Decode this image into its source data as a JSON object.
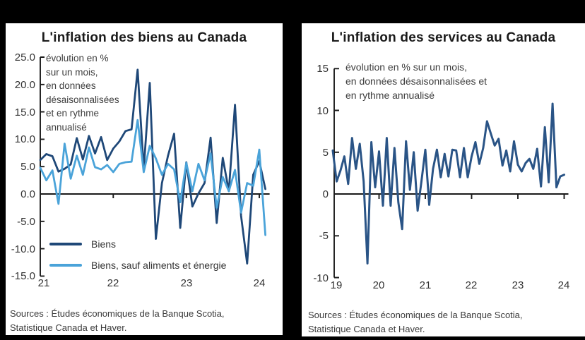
{
  "colors": {
    "dark_blue": "#1f4878",
    "light_blue": "#4aa3d9",
    "services_blue": "#2a5486",
    "axis": "#1a1a1a",
    "panel_background": "#ffffff",
    "page_background": "#000000",
    "text": "#333333"
  },
  "charts": [
    {
      "title": "L'inflation des biens au Canada",
      "annotation_lines": [
        "évolution en %",
        "sur un mois,",
        "en données",
        "désaisonnalisées",
        "et en rythme",
        "annualisé"
      ],
      "sources_lines": [
        "Sources : Études économiques de la Banque Scotia,",
        "Statistique Canada et Haver."
      ],
      "legend_labels": [
        "Biens",
        "Biens, sauf aliments et énergie"
      ],
      "chart_data": {
        "type": "line",
        "x_unit": "monthly",
        "x_start": "2021-01",
        "x_end": "2024-02",
        "ylim": [
          -15,
          25
        ],
        "grid": false,
        "legend_position": "inside-bottom-left",
        "y_ticks": [
          {
            "v": 25,
            "label": "25.0"
          },
          {
            "v": 20,
            "label": "20.0"
          },
          {
            "v": 15,
            "label": "15.0"
          },
          {
            "v": 10,
            "label": "10.0"
          },
          {
            "v": 5,
            "label": "5.0"
          },
          {
            "v": 0,
            "label": "0.0"
          },
          {
            "v": -5,
            "label": "-5.0"
          },
          {
            "v": -10,
            "label": "-10.0"
          },
          {
            "v": -15,
            "label": "-15.0"
          }
        ],
        "x_ticks": [
          {
            "t": 2021,
            "label": "21"
          },
          {
            "t": 2022,
            "label": "22"
          },
          {
            "t": 2023,
            "label": "23"
          },
          {
            "t": 2024,
            "label": "24"
          }
        ],
        "series": [
          {
            "name": "Biens",
            "color": "dark_blue",
            "values": [
              6.2,
              7.3,
              6.9,
              4.1,
              4.6,
              5.4,
              10.2,
              6.3,
              10.6,
              7.4,
              10.4,
              6.2,
              8.3,
              9.6,
              11.5,
              11.8,
              22.7,
              4.5,
              20.3,
              -8.2,
              2.0,
              7.0,
              11.0,
              -6.2,
              5.8,
              -2.3,
              0.1,
              2.0,
              10.3,
              -5.3,
              6.6,
              0.5,
              16.3,
              -4.0,
              -12.7,
              3.5,
              6.0,
              0.9
            ]
          },
          {
            "name": "Biens, sauf aliments et énergie",
            "color": "light_blue",
            "values": [
              4.8,
              2.5,
              4.3,
              -1.8,
              9.2,
              2.8,
              7.0,
              3.5,
              8.5,
              4.9,
              4.5,
              5.3,
              4.0,
              5.5,
              5.8,
              5.9,
              13.5,
              4.0,
              8.8,
              6.5,
              3.5,
              5.5,
              4.5,
              -1.5,
              5.7,
              0.5,
              5.5,
              2.5,
              7.4,
              -2.5,
              3.1,
              0.5,
              4.4,
              -3.4,
              2.0,
              1.5,
              8.1,
              -7.5
            ]
          }
        ]
      }
    },
    {
      "title": "L'inflation des services au Canada",
      "annotation_lines": [
        "évolution en % sur un mois,",
        "en données désaisonnalisées et",
        "en rythme annualisé"
      ],
      "sources_lines": [
        "Sources : Études économiques de la Banque Scotia,",
        "Statistique Canada et Haver."
      ],
      "legend_labels": [],
      "chart_data": {
        "type": "line",
        "x_unit": "monthly",
        "x_start": "2019-01",
        "x_end": "2024-01",
        "ylim": [
          -10,
          15
        ],
        "grid": false,
        "legend_position": "none",
        "y_ticks": [
          {
            "v": 15,
            "label": "15"
          },
          {
            "v": 10,
            "label": "10"
          },
          {
            "v": 5,
            "label": "5"
          },
          {
            "v": 0,
            "label": "0"
          },
          {
            "v": -5,
            "label": "-5"
          },
          {
            "v": -10,
            "label": "-10"
          }
        ],
        "x_ticks": [
          {
            "t": 2019,
            "label": "19"
          },
          {
            "t": 2020,
            "label": "20"
          },
          {
            "t": 2021,
            "label": "21"
          },
          {
            "t": 2022,
            "label": "22"
          },
          {
            "t": 2023,
            "label": "23"
          },
          {
            "t": 2024,
            "label": "24"
          }
        ],
        "series": [
          {
            "name": "Services",
            "color": "services_blue",
            "values": [
              5.2,
              1.5,
              2.8,
              4.5,
              1.2,
              6.7,
              3.0,
              6.0,
              1.5,
              -8.3,
              6.2,
              0.8,
              5.1,
              -1.4,
              6.7,
              -1.4,
              5.5,
              -1.0,
              -4.2,
              6.3,
              0.5,
              5.0,
              -2.0,
              1.5,
              5.3,
              -1.3,
              3.0,
              5.3,
              2.0,
              4.8,
              2.1,
              5.3,
              5.2,
              2.0,
              5.5,
              2.0,
              4.5,
              6.2,
              3.6,
              5.5,
              8.7,
              7.2,
              5.8,
              6.6,
              3.4,
              5.2,
              2.7,
              6.3,
              3.5,
              2.7,
              3.7,
              4.2,
              3.0,
              5.4,
              0.9,
              8.0,
              1.4,
              10.8,
              0.8,
              2.1,
              2.3
            ]
          }
        ]
      }
    }
  ]
}
